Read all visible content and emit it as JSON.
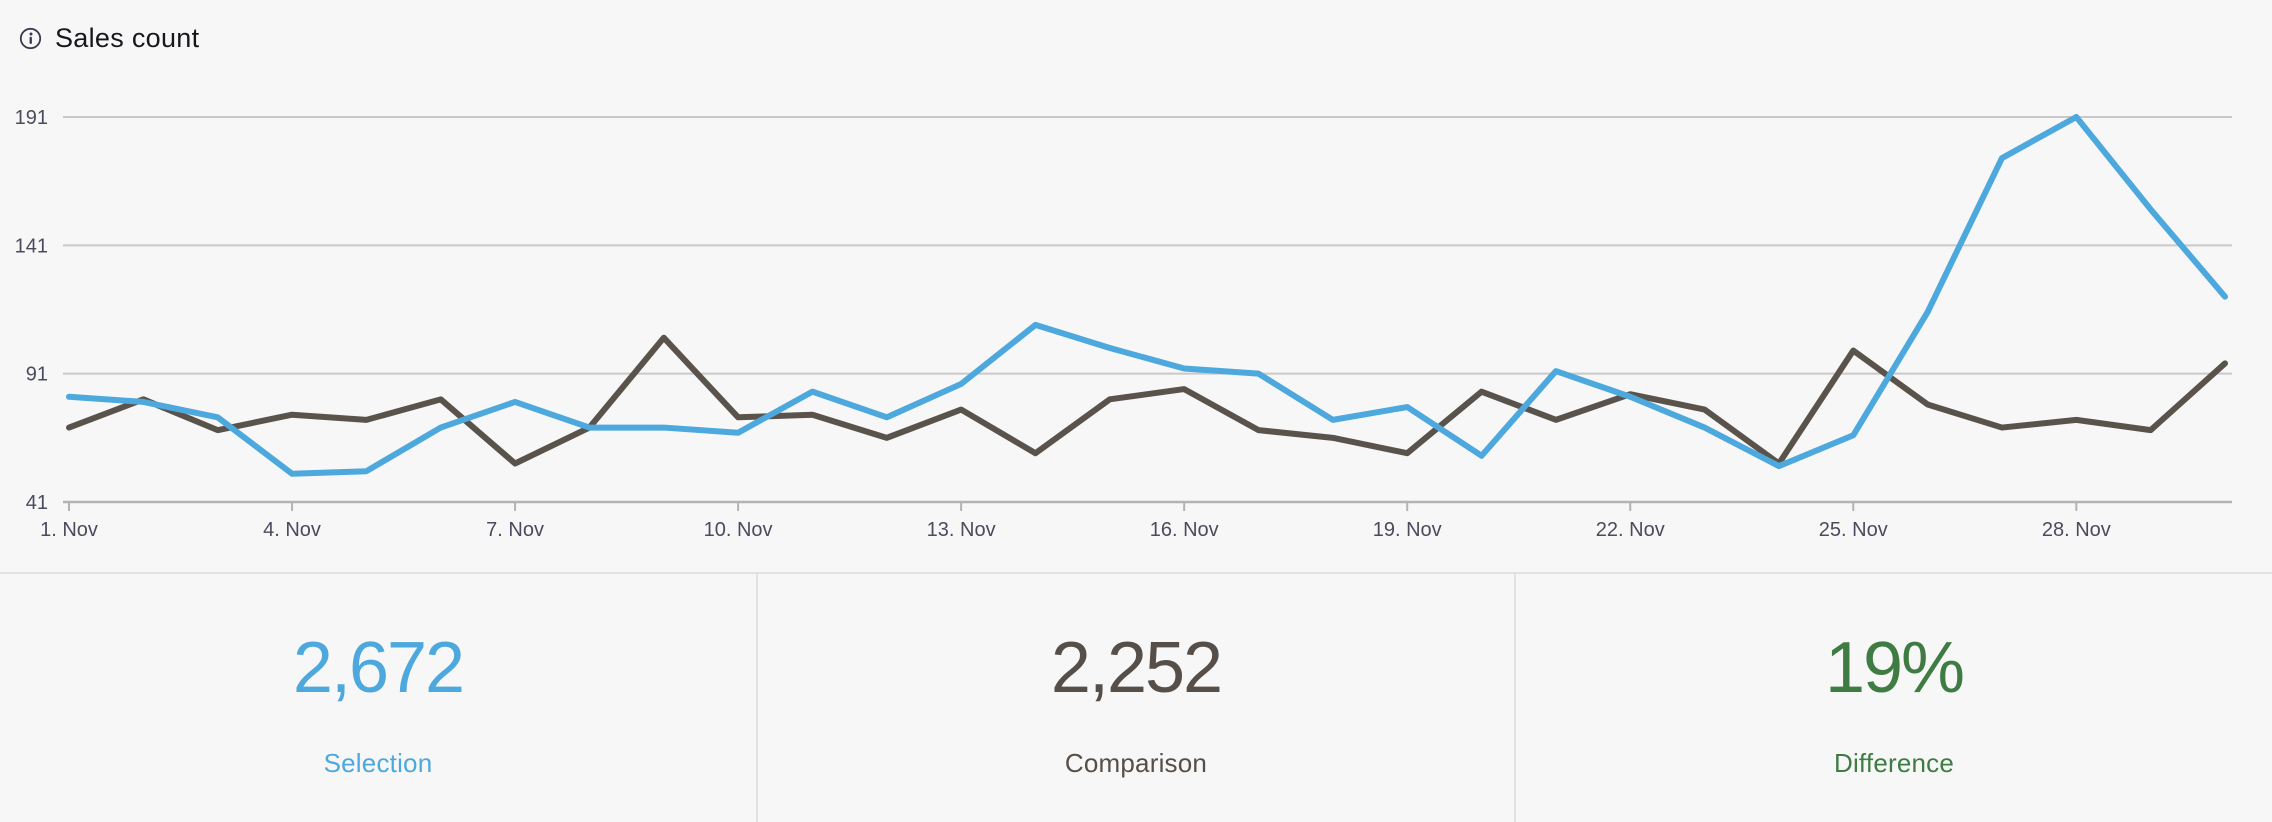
{
  "header": {
    "title": "Sales count",
    "info_icon": "info-icon",
    "icon_color": "#3a3a4e"
  },
  "chart_data": {
    "type": "line",
    "title": "Sales count",
    "xlabel": "",
    "ylabel": "",
    "ylim": [
      41,
      191
    ],
    "grid": true,
    "legend_position": "none",
    "yticks": [
      41,
      91,
      141,
      191
    ],
    "xtick_indices": [
      0,
      3,
      6,
      9,
      12,
      15,
      18,
      21,
      24,
      27
    ],
    "categories": [
      "1. Nov",
      "2. Nov",
      "3. Nov",
      "4. Nov",
      "5. Nov",
      "6. Nov",
      "7. Nov",
      "8. Nov",
      "9. Nov",
      "10. Nov",
      "11. Nov",
      "12. Nov",
      "13. Nov",
      "14. Nov",
      "15. Nov",
      "16. Nov",
      "17. Nov",
      "18. Nov",
      "19. Nov",
      "20. Nov",
      "21. Nov",
      "22. Nov",
      "23. Nov",
      "24. Nov",
      "25. Nov",
      "26. Nov",
      "27. Nov",
      "28. Nov",
      "29. Nov",
      "30. Nov"
    ],
    "series": [
      {
        "name": "Comparison",
        "color": "#5a534c",
        "values": [
          70,
          81,
          69,
          75,
          73,
          81,
          56,
          70,
          105,
          74,
          75,
          66,
          77,
          60,
          81,
          85,
          69,
          66,
          60,
          84,
          73,
          83,
          77,
          56,
          100,
          79,
          70,
          73,
          69,
          95
        ]
      },
      {
        "name": "Selection",
        "color": "#4da8dd",
        "values": [
          82,
          80,
          74,
          52,
          53,
          70,
          80,
          70,
          70,
          68,
          84,
          74,
          87,
          110,
          101,
          93,
          91,
          73,
          78,
          59,
          92,
          82,
          70,
          55,
          67,
          115,
          175,
          191,
          155,
          121
        ]
      }
    ]
  },
  "summary": {
    "panels": [
      {
        "value": "2,672",
        "label": "Selection",
        "color": "#4da8dd"
      },
      {
        "value": "2,252",
        "label": "Comparison",
        "color": "#564f49"
      },
      {
        "value": "19%",
        "label": "Difference",
        "color": "#3f7c44"
      }
    ]
  }
}
